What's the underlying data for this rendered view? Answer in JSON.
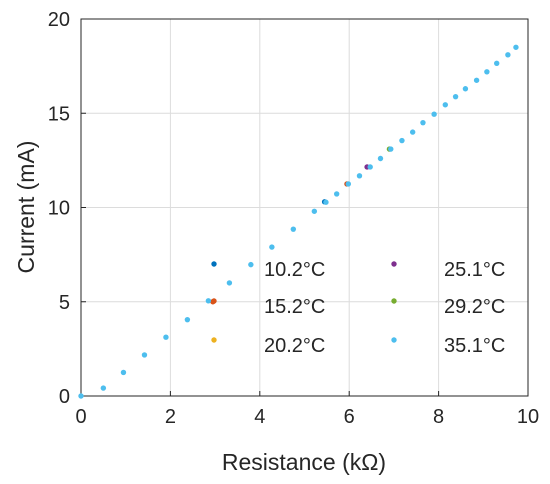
{
  "chart_data": {
    "type": "scatter",
    "xlabel": "Resistance (kΩ)",
    "ylabel": "Current  (mA)",
    "xlim": [
      0,
      10
    ],
    "ylim": [
      0,
      20
    ],
    "xticks": [
      "0",
      "2",
      "4",
      "6",
      "8",
      "10"
    ],
    "yticks": [
      "0",
      "5",
      "10",
      "15",
      "20"
    ],
    "grid": true,
    "legend_position": "inside-center-right",
    "series": [
      {
        "name": "10.2°C",
        "color": "#0072BD",
        "points": [
          [
            5.45,
            10.3
          ]
        ]
      },
      {
        "name": "15.2°C",
        "color": "#D95319",
        "points": [
          [
            5.95,
            11.25
          ],
          [
            2.95,
            5.0
          ]
        ]
      },
      {
        "name": "20.2°C",
        "color": "#EDB120",
        "points": []
      },
      {
        "name": "25.1°C",
        "color": "#7E2F8E",
        "points": [
          [
            6.4,
            12.15
          ]
        ]
      },
      {
        "name": "29.2°C",
        "color": "#77AC30",
        "points": [
          [
            6.9,
            13.1
          ]
        ]
      },
      {
        "name": "35.1°C",
        "color": "#4DBEEE",
        "points": [
          [
            0.0,
            0.0
          ],
          [
            0.5,
            0.42
          ],
          [
            0.95,
            1.25
          ],
          [
            1.42,
            2.18
          ],
          [
            1.9,
            3.12
          ],
          [
            2.38,
            4.05
          ],
          [
            2.85,
            5.05
          ],
          [
            3.32,
            6.0
          ],
          [
            3.8,
            6.97
          ],
          [
            4.27,
            7.9
          ],
          [
            4.75,
            8.85
          ],
          [
            5.22,
            9.8
          ],
          [
            5.48,
            10.28
          ],
          [
            5.72,
            10.72
          ],
          [
            5.98,
            11.25
          ],
          [
            6.23,
            11.68
          ],
          [
            6.47,
            12.15
          ],
          [
            6.7,
            12.6
          ],
          [
            6.93,
            13.1
          ],
          [
            7.18,
            13.55
          ],
          [
            7.42,
            14.0
          ],
          [
            7.65,
            14.5
          ],
          [
            7.9,
            14.95
          ],
          [
            8.15,
            15.45
          ],
          [
            8.38,
            15.88
          ],
          [
            8.6,
            16.3
          ],
          [
            8.85,
            16.75
          ],
          [
            9.08,
            17.2
          ],
          [
            9.3,
            17.65
          ],
          [
            9.55,
            18.1
          ],
          [
            9.73,
            18.5
          ]
        ]
      }
    ]
  }
}
